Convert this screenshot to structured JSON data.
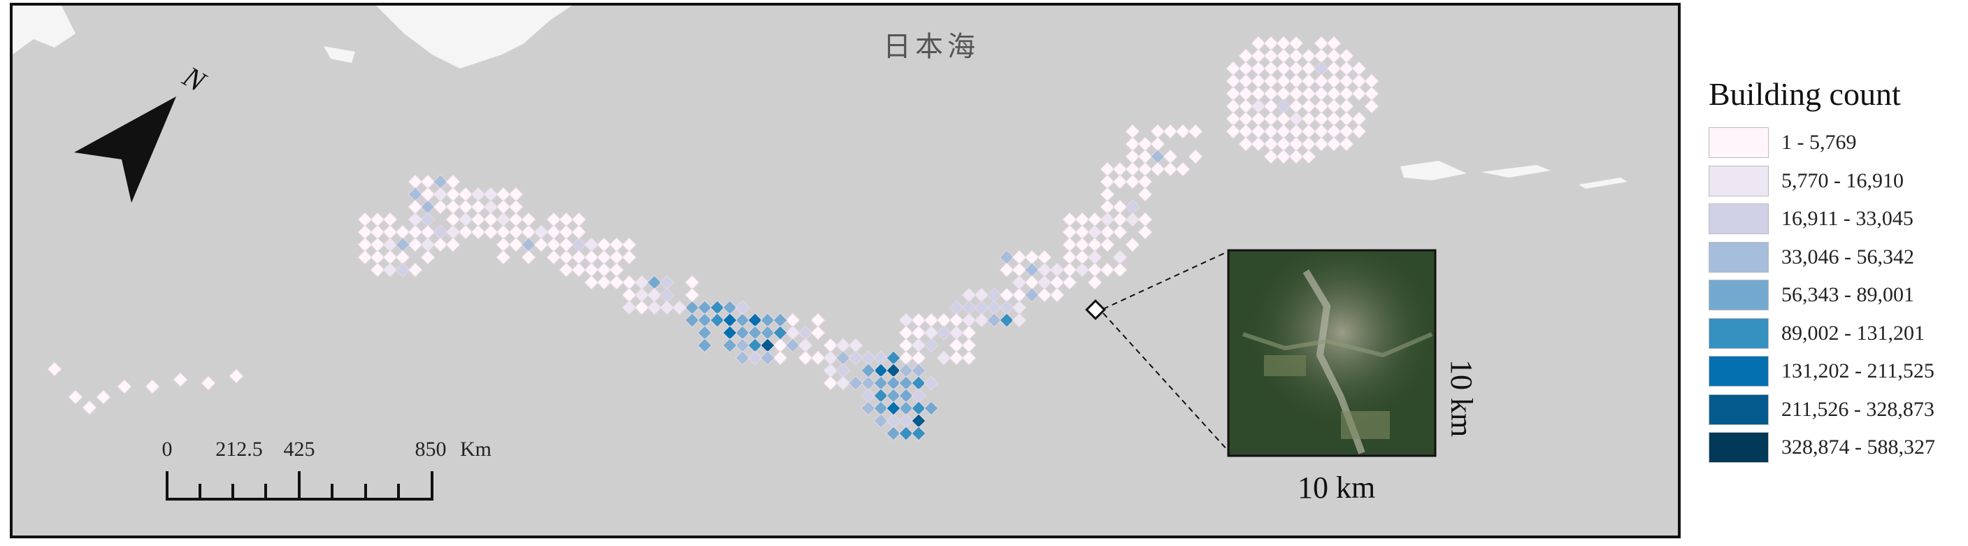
{
  "map": {
    "sea_label": "日本海",
    "north_label": "N",
    "scale_bar": {
      "ticks": [
        "0",
        "212.5",
        "425",
        "850"
      ],
      "unit": "Km"
    },
    "inset": {
      "width_label": "10 km",
      "height_label": "10 km"
    },
    "colors": {
      "water": "#cfcfcf",
      "land_outside": "#f2f2f2",
      "grid_line": "#f4f0f4"
    }
  },
  "legend": {
    "title": "Building count",
    "classes": [
      {
        "label": "1 - 5,769",
        "color": "#fff5fa"
      },
      {
        "label": "5,770 - 16,910",
        "color": "#ece7f2"
      },
      {
        "label": "16,911 - 33,045",
        "color": "#d0d1e6"
      },
      {
        "label": "33,046 - 56,342",
        "color": "#a6bddb"
      },
      {
        "label": "56,343 - 89,001",
        "color": "#74a9cf"
      },
      {
        "label": "89,002 - 131,201",
        "color": "#3690c0"
      },
      {
        "label": "131,202 - 211,525",
        "color": "#0570b0"
      },
      {
        "label": "211,526 - 328,873",
        "color": "#045a8d"
      },
      {
        "label": "328,874 - 588,327",
        "color": "#023858"
      }
    ]
  }
}
